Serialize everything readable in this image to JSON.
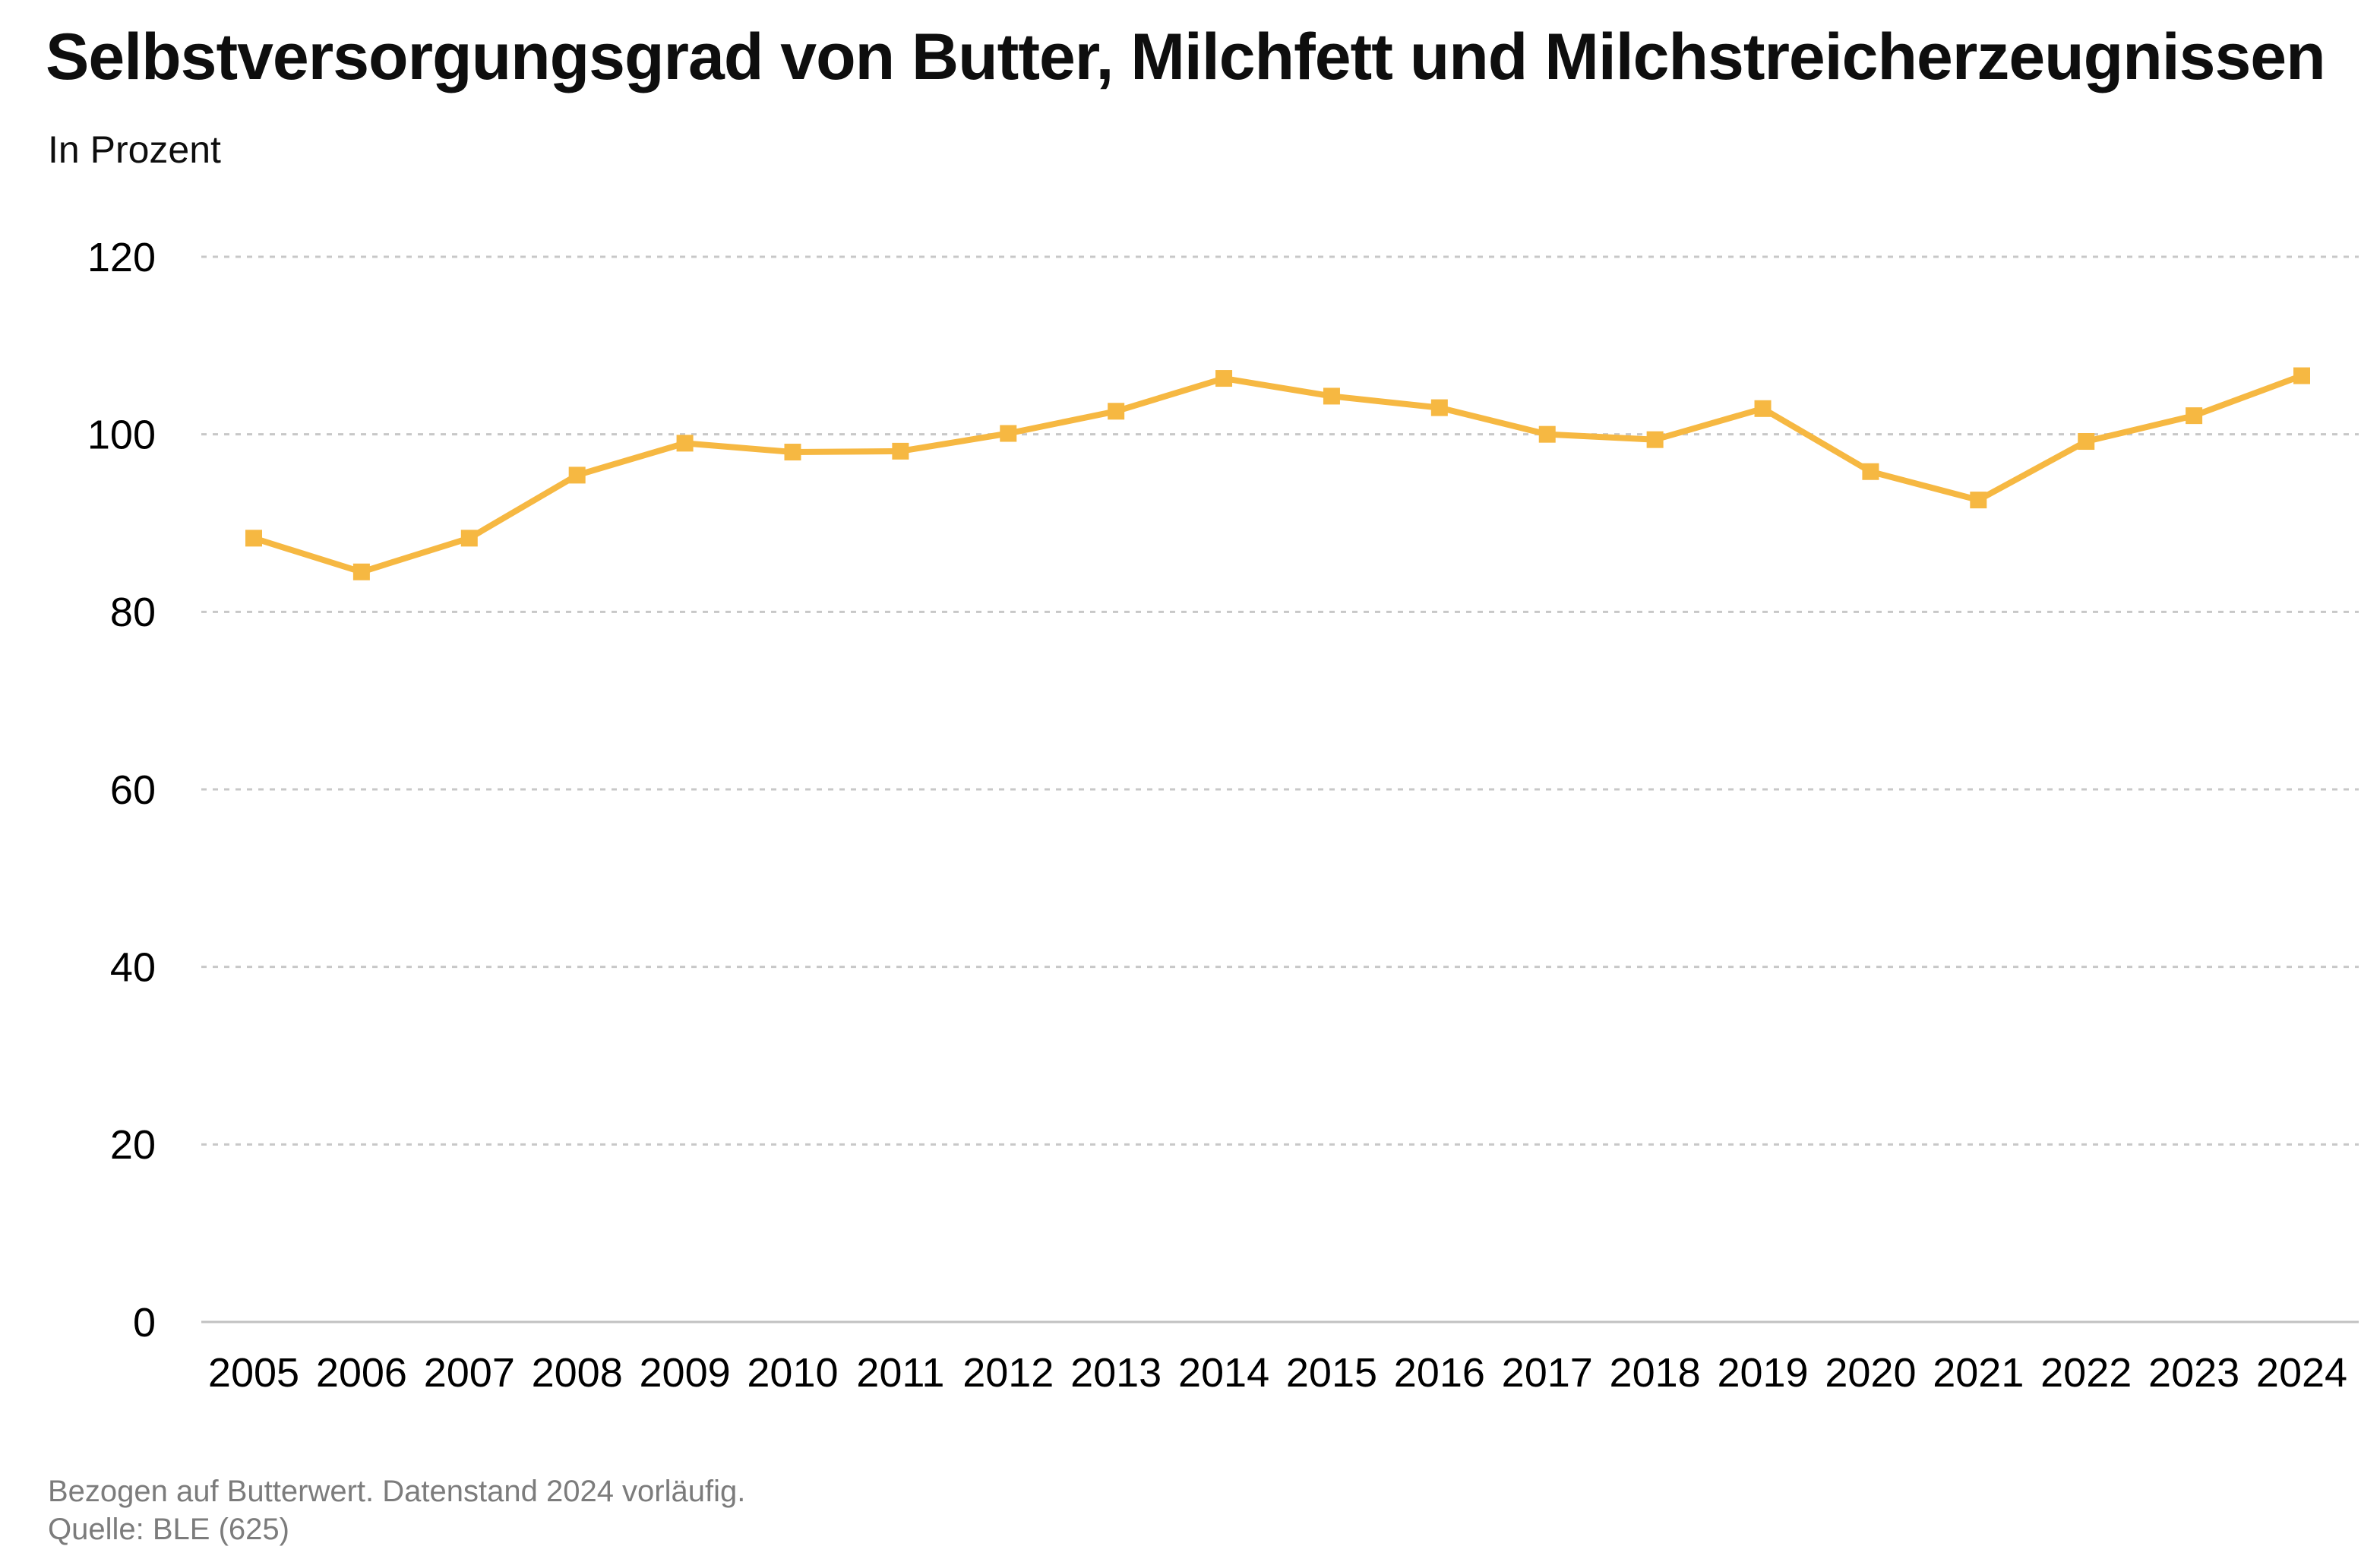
{
  "header": {
    "title": "Selbstversorgungsgrad von Butter, Milchfett und Milchstreicherzeugnissen",
    "subtitle": "In Prozent"
  },
  "footer": {
    "note": "Bezogen auf Butterwert. Datenstand 2024 vorläufig.",
    "source": "Quelle: BLE (625)"
  },
  "style": {
    "accent": "#F6B842",
    "grid_color": "#C8C8C8",
    "text_color": "#000000",
    "muted_color": "#7C7C7C"
  },
  "chart_data": {
    "type": "line",
    "title": "Selbstversorgungsgrad von Butter, Milchfett und Milchstreicherzeugnissen",
    "subtitle": "In Prozent",
    "categories": [
      "2005",
      "2006",
      "2007",
      "2008",
      "2009",
      "2010",
      "2011",
      "2012",
      "2013",
      "2014",
      "2015",
      "2016",
      "2017",
      "2018",
      "2019",
      "2020",
      "2021",
      "2022",
      "2023",
      "2024"
    ],
    "values": [
      88.3,
      84.5,
      88.3,
      95.4,
      99.0,
      98.0,
      98.1,
      100.1,
      102.6,
      106.3,
      104.3,
      103.0,
      100.0,
      99.4,
      102.9,
      95.8,
      92.6,
      99.2,
      102.1,
      106.6
    ],
    "xlabel": "",
    "ylabel": "In Prozent",
    "ylim": [
      0,
      120
    ],
    "yticks": [
      0,
      20,
      40,
      60,
      80,
      100,
      120
    ],
    "grid": "horizontal-dashed",
    "legend": "none",
    "line_color": "#F6B842",
    "marker": "square"
  }
}
